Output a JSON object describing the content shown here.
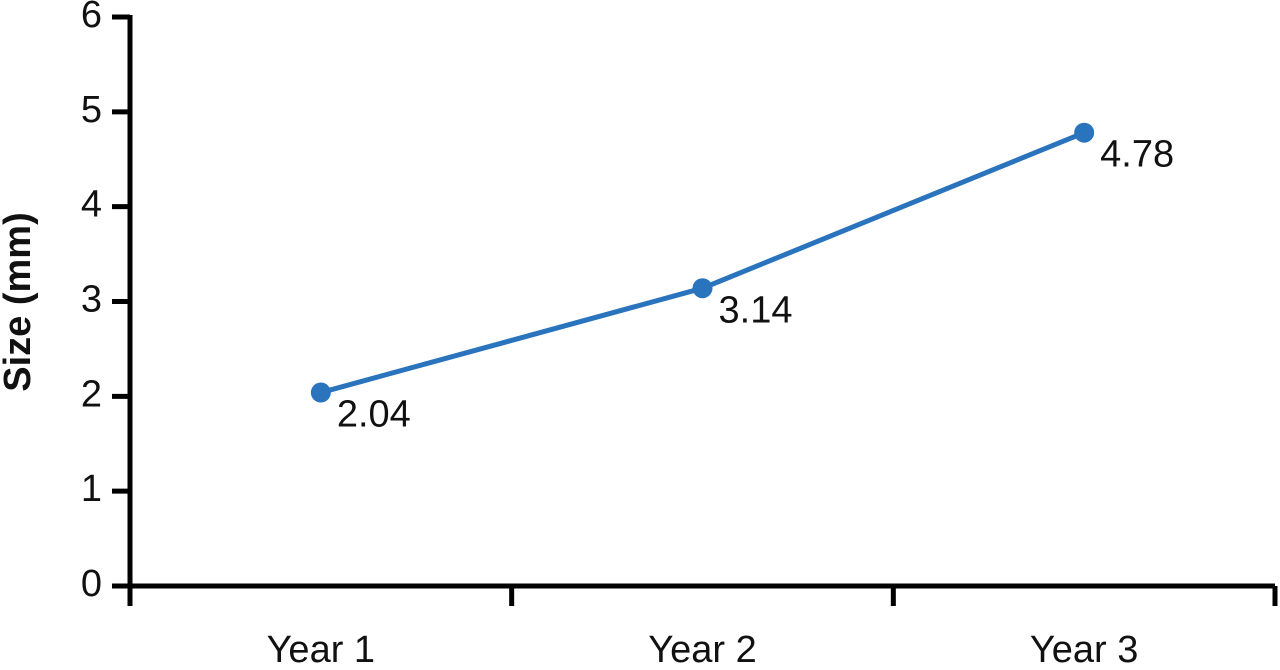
{
  "chart_data": {
    "type": "line",
    "y_label": "Size (mm)",
    "categories": [
      "Year 1",
      "Year 2",
      "Year 3"
    ],
    "series": [
      {
        "name": "Size",
        "color": "#2a73bd",
        "values": [
          2.04,
          3.14,
          4.78
        ]
      }
    ],
    "ylim": [
      0,
      6
    ],
    "yticks": [
      0,
      1,
      2,
      3,
      4,
      5,
      6
    ],
    "grid": false,
    "legend": false
  }
}
